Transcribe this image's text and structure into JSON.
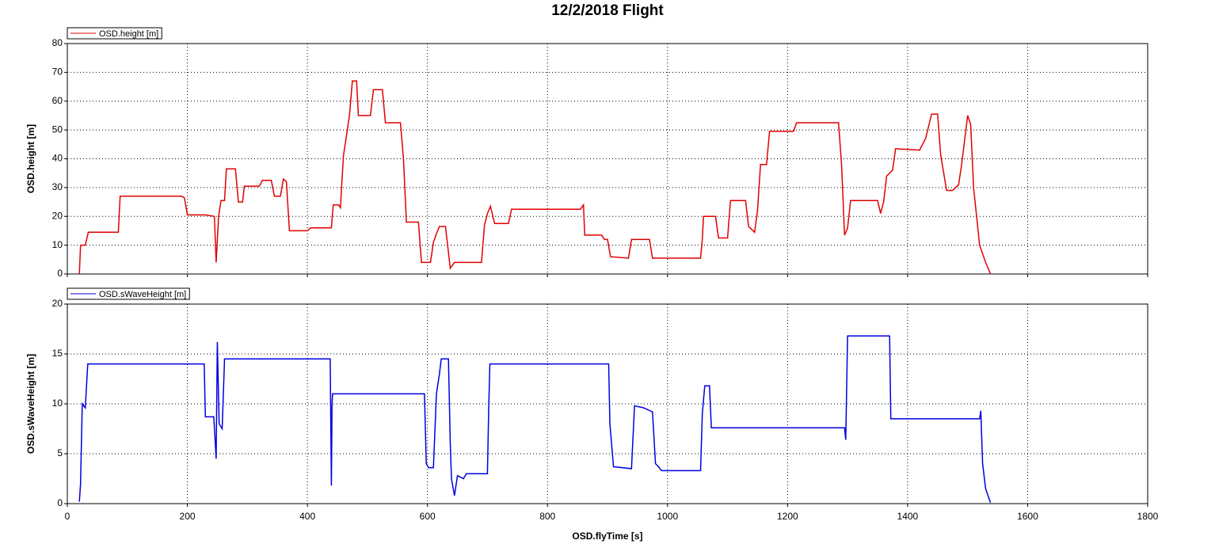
{
  "title": "12/2/2018 Flight",
  "chart_data": [
    {
      "type": "line",
      "ylabel": "OSD.height [m]",
      "ylim": [
        0,
        80
      ],
      "yticks": [
        0,
        10,
        20,
        30,
        40,
        50,
        60,
        70,
        80
      ],
      "grid": true,
      "legend": "top-left",
      "x": [
        20,
        22,
        30,
        35,
        85,
        88,
        190,
        195,
        200,
        230,
        245,
        248,
        252,
        256,
        262,
        265,
        280,
        285,
        292,
        295,
        320,
        325,
        340,
        345,
        355,
        360,
        365,
        370,
        400,
        405,
        440,
        443,
        452,
        455,
        460,
        465,
        470,
        475,
        482,
        485,
        505,
        510,
        525,
        530,
        555,
        560,
        565,
        585,
        590,
        605,
        610,
        615,
        620,
        630,
        638,
        645,
        690,
        695,
        700,
        705,
        712,
        735,
        740,
        855,
        860,
        862,
        890,
        895,
        900,
        905,
        935,
        940,
        970,
        975,
        1055,
        1058,
        1060,
        1080,
        1085,
        1100,
        1105,
        1130,
        1135,
        1145,
        1150,
        1155,
        1165,
        1170,
        1210,
        1215,
        1285,
        1290,
        1295,
        1300,
        1305,
        1350,
        1355,
        1360,
        1365,
        1375,
        1380,
        1420,
        1430,
        1440,
        1450,
        1455,
        1465,
        1475,
        1485,
        1490,
        1500,
        1505,
        1510,
        1520,
        1530,
        1538
      ],
      "series": [
        {
          "name": "OSD.height [m]",
          "color": "#e00000",
          "values": [
            0,
            10,
            10,
            14.5,
            14.5,
            27,
            27,
            26.5,
            20.5,
            20.5,
            20,
            4,
            20,
            25.5,
            25.5,
            36.5,
            36.5,
            25,
            25,
            30.5,
            30.5,
            32.5,
            32.5,
            27,
            27,
            33,
            32,
            15,
            15,
            16,
            16,
            24,
            24,
            23,
            41,
            48,
            55,
            67,
            67,
            55,
            55,
            64,
            64,
            52.5,
            52.5,
            40,
            18,
            18,
            4,
            4,
            11,
            14,
            16.5,
            16.5,
            2,
            4,
            4,
            17,
            21,
            23.5,
            17.5,
            17.5,
            22.5,
            22.5,
            24,
            13.5,
            13.5,
            12,
            12,
            6,
            5.5,
            12,
            12,
            5.5,
            5.5,
            12,
            20,
            20,
            12.5,
            12.5,
            25.5,
            25.5,
            16.5,
            14.5,
            22,
            38,
            38,
            49.5,
            49.5,
            52.5,
            52.5,
            38,
            13.5,
            16,
            25.5,
            25.5,
            21,
            25,
            34,
            36,
            43.5,
            43,
            47,
            55.5,
            55.5,
            41.5,
            29,
            29,
            31,
            38,
            55,
            52,
            30,
            10,
            4,
            0
          ]
        }
      ]
    },
    {
      "type": "line",
      "ylabel": "OSD.sWaveHeight [m]",
      "xlabel": "OSD.flyTime [s]",
      "xlim": [
        0,
        1800
      ],
      "xticks": [
        0,
        200,
        400,
        600,
        800,
        1000,
        1200,
        1400,
        1600,
        1800
      ],
      "ylim": [
        0,
        20
      ],
      "yticks": [
        0,
        5,
        10,
        15,
        20
      ],
      "grid": true,
      "legend": "top-left",
      "x": [
        20,
        22,
        25,
        30,
        34,
        228,
        230,
        244,
        248,
        250,
        253,
        258,
        262,
        438,
        440,
        441,
        442,
        595,
        598,
        602,
        610,
        615,
        620,
        623,
        635,
        638,
        640,
        645,
        650,
        660,
        665,
        700,
        702,
        704,
        902,
        904,
        910,
        940,
        945,
        960,
        975,
        980,
        985,
        990,
        1055,
        1058,
        1062,
        1070,
        1073,
        1295,
        1297,
        1300,
        1370,
        1372,
        1520,
        1522,
        1525,
        1530,
        1538
      ],
      "series": [
        {
          "name": "OSD.sWaveHeight [m]",
          "color": "#0000e0",
          "values": [
            0.2,
            2,
            10,
            9.6,
            14,
            14,
            8.7,
            8.7,
            4.5,
            16.2,
            8,
            7.5,
            14.5,
            14.5,
            1.8,
            10,
            11,
            11,
            4,
            3.6,
            3.6,
            11,
            13,
            14.5,
            14.5,
            6,
            2.5,
            0.8,
            2.8,
            2.5,
            3,
            3,
            9.5,
            14,
            14,
            8,
            3.7,
            3.5,
            9.8,
            9.6,
            9.2,
            4,
            3.7,
            3.3,
            3.3,
            9,
            11.8,
            11.8,
            7.6,
            7.6,
            6.4,
            16.8,
            16.8,
            8.5,
            8.5,
            9.3,
            4,
            1.5,
            0.1
          ]
        }
      ]
    }
  ]
}
